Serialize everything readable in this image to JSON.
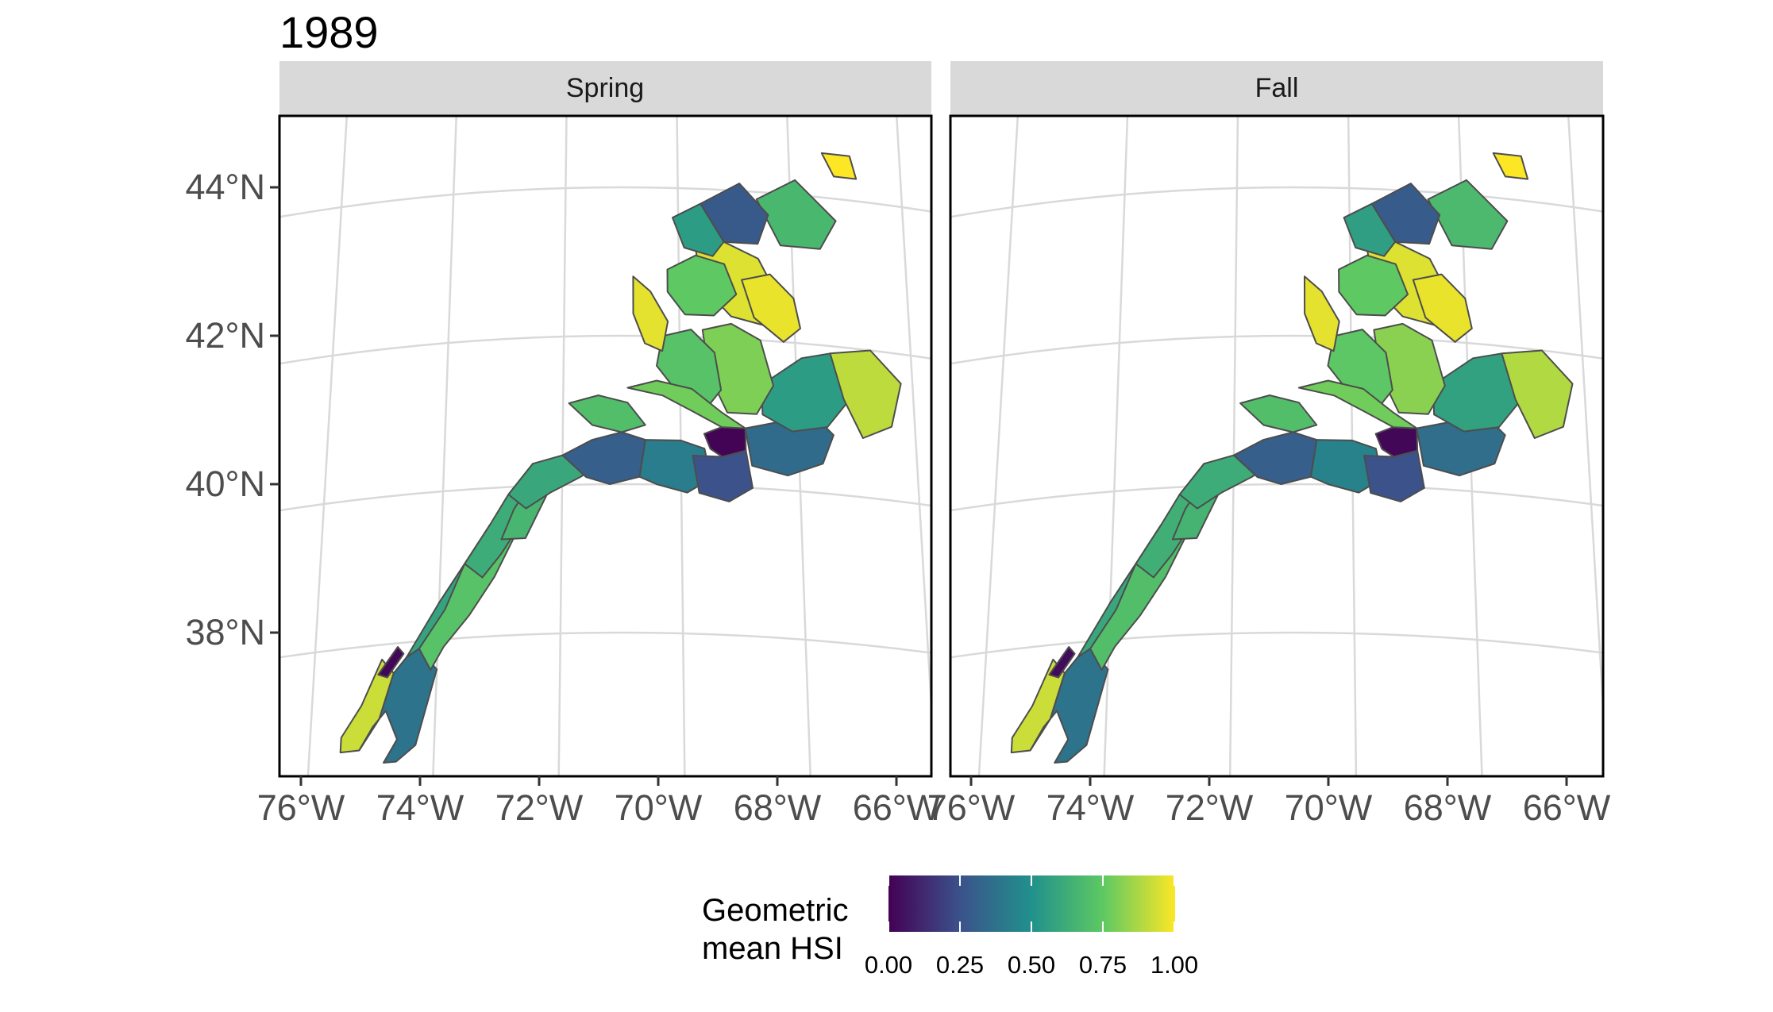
{
  "title": "1989",
  "panels": [
    {
      "label": "Spring",
      "panel_id": "spring"
    },
    {
      "label": "Fall",
      "panel_id": "fall"
    }
  ],
  "axes": {
    "y_ticks": [
      "44°N",
      "42°N",
      "40°N",
      "38°N"
    ],
    "x_ticks": [
      "76°W",
      "74°W",
      "72°W",
      "70°W",
      "68°W",
      "66°W"
    ]
  },
  "legend": {
    "title_line1": "Geometric",
    "title_line2": "mean HSI",
    "ticks": [
      "0.00",
      "0.25",
      "0.50",
      "0.75",
      "1.00"
    ],
    "palette": [
      "#440154",
      "#3b528b",
      "#21918c",
      "#5ec962",
      "#fde725"
    ]
  },
  "colors": {
    "grid": "#d9d9d9",
    "strip_fill": "#d9d9d9",
    "panel_border": "#000000",
    "region_stroke": "#4d4d4d",
    "coast": "#4d4d4d"
  },
  "chart_data": {
    "type": "heatmap",
    "title": "1989",
    "facets": [
      "Spring",
      "Fall"
    ],
    "xlim": [
      -76.3,
      -65.5
    ],
    "ylim": [
      36.2,
      44.9
    ],
    "color_scale": {
      "name": "Geometric mean HSI",
      "min": 0.0,
      "max": 1.0,
      "palette": "viridis"
    },
    "regions": [
      {
        "lon": [
          -75.5,
          -75.2,
          -74.9,
          -74.7,
          -74.9,
          -75.2,
          -75.5
        ],
        "lat": [
          36.6,
          36.6,
          37.0,
          37.6,
          37.8,
          37.2,
          36.8
        ],
        "values": {
          "Spring": 0.92,
          "Fall": 0.92
        }
      },
      {
        "lon": [
          -75.2,
          -74.9,
          -74.7,
          -74.5,
          -74.3,
          -74.0,
          -74.3,
          -74.6,
          -74.8,
          -74.6,
          -74.8,
          -75.0
        ],
        "lat": [
          36.6,
          37.0,
          37.6,
          37.8,
          37.9,
          37.6,
          36.6,
          36.4,
          36.4,
          36.7,
          37.1,
          36.9
        ],
        "values": {
          "Spring": 0.38,
          "Fall": 0.38
        }
      },
      {
        "lon": [
          -74.95,
          -74.65,
          -74.55,
          -74.8
        ],
        "lat": [
          37.6,
          37.95,
          37.85,
          37.55
        ],
        "values": {
          "Spring": 0.02,
          "Fall": 0.03
        }
      },
      {
        "lon": [
          -74.3,
          -74.0,
          -73.6,
          -73.2,
          -72.8,
          -73.1,
          -73.5,
          -73.9,
          -74.1
        ],
        "lat": [
          37.9,
          38.5,
          39.0,
          39.5,
          39.3,
          38.8,
          38.3,
          37.9,
          37.6
        ],
        "values": {
          "Spring": 0.72,
          "Fall": 0.7
        }
      },
      {
        "lon": [
          -73.6,
          -73.2,
          -72.9,
          -72.5,
          -72.2,
          -72.6,
          -73.0,
          -73.3
        ],
        "lat": [
          39.0,
          39.5,
          39.9,
          40.3,
          40.1,
          39.6,
          39.1,
          38.8
        ],
        "values": {
          "Spring": 0.62,
          "Fall": 0.63
        }
      },
      {
        "lon": [
          -74.5,
          -74.0,
          -73.6,
          -73.9,
          -74.3
        ],
        "lat": [
          37.8,
          38.5,
          39.0,
          38.4,
          37.9
        ],
        "values": {
          "Spring": 0.58,
          "Fall": 0.6
        }
      },
      {
        "lon": [
          -73.0,
          -72.8,
          -72.4,
          -72.0,
          -72.3,
          -72.6
        ],
        "lat": [
          39.3,
          39.7,
          40.2,
          40.3,
          39.8,
          39.3
        ],
        "values": {
          "Spring": 0.66,
          "Fall": 0.65
        }
      },
      {
        "lon": [
          -72.9,
          -72.5,
          -72.0,
          -71.5,
          -71.3,
          -71.7,
          -72.2,
          -72.6
        ],
        "lat": [
          39.9,
          40.3,
          40.4,
          40.6,
          40.3,
          40.1,
          39.9,
          39.7
        ],
        "values": {
          "Spring": 0.6,
          "Fall": 0.62
        }
      },
      {
        "lon": [
          -72.0,
          -71.5,
          -71.0,
          -70.6,
          -70.7,
          -71.2,
          -71.6
        ],
        "lat": [
          40.4,
          40.6,
          40.7,
          40.6,
          40.1,
          40.0,
          40.1
        ],
        "values": {
          "Spring": 0.3,
          "Fall": 0.3
        }
      },
      {
        "lon": [
          -70.6,
          -70.0,
          -69.6,
          -69.5,
          -69.9,
          -70.4,
          -70.7
        ],
        "lat": [
          40.6,
          40.6,
          40.5,
          40.1,
          39.9,
          40.0,
          40.1
        ],
        "values": {
          "Spring": 0.42,
          "Fall": 0.44
        }
      },
      {
        "lon": [
          -69.6,
          -69.3,
          -68.9,
          -68.9,
          -69.3,
          -69.5
        ],
        "lat": [
          40.7,
          40.8,
          40.8,
          40.5,
          40.4,
          40.5
        ],
        "values": {
          "Spring": 0.01,
          "Fall": 0.02
        }
      },
      {
        "lon": [
          -69.8,
          -69.3,
          -68.9,
          -68.8,
          -69.2,
          -69.7
        ],
        "lat": [
          40.4,
          40.4,
          40.5,
          40.0,
          39.8,
          39.9
        ],
        "values": {
          "Spring": 0.25,
          "Fall": 0.25
        }
      },
      {
        "lon": [
          -68.9,
          -68.4,
          -67.8,
          -67.4,
          -67.6,
          -68.2,
          -68.8
        ],
        "lat": [
          40.8,
          40.9,
          41.1,
          40.8,
          40.4,
          40.2,
          40.3
        ],
        "values": {
          "Spring": 0.35,
          "Fall": 0.36
        }
      },
      {
        "lon": [
          -68.6,
          -67.9,
          -67.4,
          -67.1,
          -67.5,
          -68.1,
          -68.6
        ],
        "lat": [
          41.4,
          41.8,
          41.9,
          41.3,
          40.9,
          40.8,
          41.0
        ],
        "values": {
          "Spring": 0.55,
          "Fall": 0.57
        }
      },
      {
        "lon": [
          -67.4,
          -66.7,
          -66.2,
          -66.4,
          -66.9,
          -67.2
        ],
        "lat": [
          41.9,
          42.0,
          41.6,
          41.0,
          40.8,
          41.3
        ],
        "values": {
          "Spring": 0.9,
          "Fall": 0.88
        }
      },
      {
        "lon": [
          -69.6,
          -69.1,
          -68.6,
          -68.4,
          -68.7,
          -69.2,
          -69.5
        ],
        "lat": [
          42.1,
          42.2,
          42.0,
          41.4,
          41.0,
          41.0,
          41.5
        ],
        "values": {
          "Spring": 0.8,
          "Fall": 0.82
        }
      },
      {
        "lon": [
          -70.3,
          -69.8,
          -69.4,
          -69.3,
          -69.6,
          -70.0,
          -70.4
        ],
        "lat": [
          42.0,
          42.1,
          41.8,
          41.3,
          41.0,
          41.2,
          41.6
        ],
        "values": {
          "Spring": 0.72,
          "Fall": 0.74
        }
      },
      {
        "lon": [
          -69.7,
          -69.2,
          -68.6,
          -68.2,
          -68.5,
          -69.1,
          -69.6
        ],
        "lat": [
          43.2,
          43.3,
          43.1,
          42.5,
          42.2,
          42.3,
          42.7
        ],
        "values": {
          "Spring": 0.95,
          "Fall": 0.95
        }
      },
      {
        "lon": [
          -68.9,
          -68.4,
          -68.0,
          -67.9,
          -68.2,
          -68.7
        ],
        "lat": [
          42.8,
          42.9,
          42.6,
          42.2,
          42.0,
          42.3
        ],
        "values": {
          "Spring": 0.97,
          "Fall": 0.97
        }
      },
      {
        "lon": [
          -70.2,
          -69.7,
          -69.2,
          -69.0,
          -69.4,
          -69.9,
          -70.2
        ],
        "lat": [
          42.9,
          43.1,
          43.0,
          42.6,
          42.3,
          42.3,
          42.6
        ],
        "values": {
          "Spring": 0.75,
          "Fall": 0.75
        }
      },
      {
        "lon": [
          -70.8,
          -70.5,
          -70.2,
          -70.3,
          -70.6,
          -70.8
        ],
        "lat": [
          42.8,
          42.6,
          42.2,
          41.8,
          41.9,
          42.3
        ],
        "values": {
          "Spring": 0.96,
          "Fall": 0.96
        }
      },
      {
        "lon": [
          -68.6,
          -67.9,
          -67.2,
          -67.5,
          -68.2
        ],
        "lat": [
          43.9,
          44.2,
          43.7,
          43.3,
          43.3
        ],
        "values": {
          "Spring": 0.67,
          "Fall": 0.68
        }
      },
      {
        "lon": [
          -69.6,
          -68.9,
          -68.4,
          -68.6,
          -69.2
        ],
        "lat": [
          43.8,
          44.1,
          43.7,
          43.3,
          43.3
        ],
        "values": {
          "Spring": 0.28,
          "Fall": 0.29
        }
      },
      {
        "lon": [
          -70.1,
          -69.6,
          -69.2,
          -69.4,
          -69.9
        ],
        "lat": [
          43.6,
          43.8,
          43.3,
          43.1,
          43.2
        ],
        "values": {
          "Spring": 0.55,
          "Fall": 0.56
        }
      },
      {
        "lon": [
          -67.4,
          -66.9,
          -66.8,
          -67.2
        ],
        "lat": [
          44.6,
          44.6,
          44.3,
          44.3
        ],
        "values": {
          "Spring": 1.0,
          "Fall": 1.0
        }
      },
      {
        "lon": [
          -70.9,
          -70.4,
          -69.8,
          -69.3,
          -68.9,
          -69.3,
          -69.8,
          -70.3
        ],
        "lat": [
          41.3,
          41.4,
          41.3,
          41.0,
          40.8,
          40.8,
          41.0,
          41.2
        ],
        "values": {
          "Spring": 0.78,
          "Fall": 0.78
        }
      },
      {
        "lon": [
          -71.9,
          -71.4,
          -70.9,
          -70.6,
          -71.0,
          -71.5
        ],
        "lat": [
          41.1,
          41.2,
          41.1,
          40.8,
          40.7,
          40.8
        ],
        "values": {
          "Spring": 0.7,
          "Fall": 0.7
        }
      }
    ]
  }
}
